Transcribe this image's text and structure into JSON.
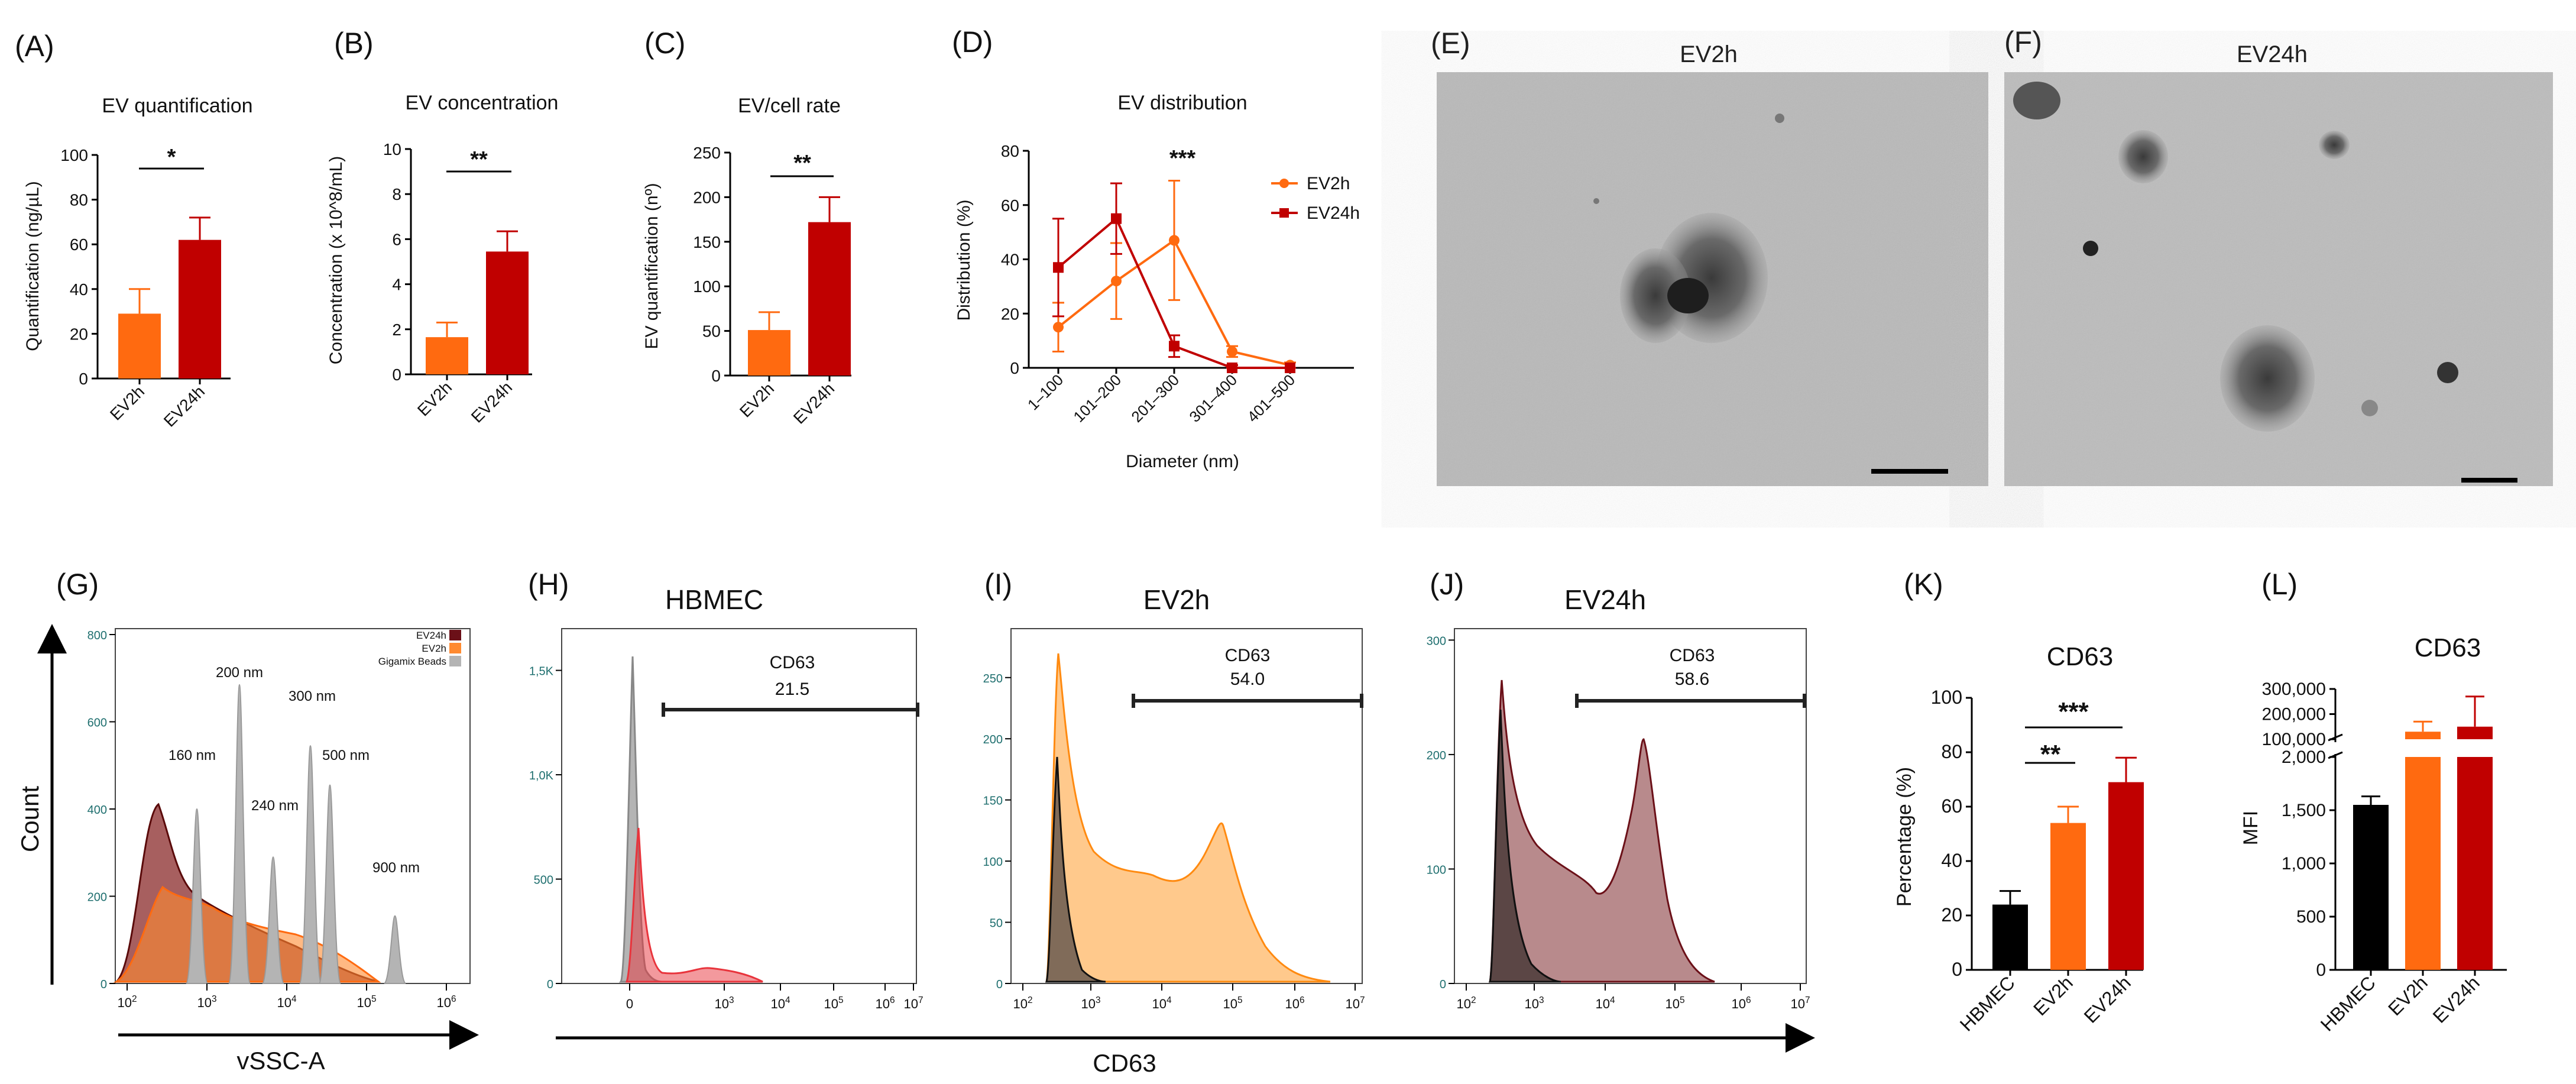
{
  "colors": {
    "ev2h": "#ff6a10",
    "ev24h": "#c00000",
    "ev24hTrace": "#6b1018",
    "ev2hFill": "#ffc98c",
    "hbmec": "#000000",
    "grey": "#b4b4b4",
    "red": "#e8343c"
  },
  "chart_data": [
    {
      "id": "A",
      "type": "bar",
      "panel_label": "(A)",
      "title": "EV quantification",
      "xlabel": "",
      "ylabel": "Quantification (ng/µL)",
      "categories": [
        "EV2h",
        "EV24h"
      ],
      "values": [
        29,
        62
      ],
      "errors": [
        11,
        10
      ],
      "ylim": [
        0,
        100
      ],
      "yticks": [
        "0",
        "20",
        "40",
        "60",
        "80",
        "100"
      ],
      "significance": "*"
    },
    {
      "id": "B",
      "type": "bar",
      "panel_label": "(B)",
      "title": "EV concentration",
      "xlabel": "",
      "ylabel": "Concentration (x 10^8/mL)",
      "categories": [
        "EV2h",
        "EV24h"
      ],
      "values": [
        1.65,
        5.45
      ],
      "errors": [
        0.65,
        0.9
      ],
      "ylim": [
        0,
        10
      ],
      "yticks": [
        "0",
        "2",
        "4",
        "6",
        "8",
        "10"
      ],
      "significance": "**"
    },
    {
      "id": "C",
      "type": "bar",
      "panel_label": "(C)",
      "title": "EV/cell rate",
      "xlabel": "",
      "ylabel": "EV quantification (nº)",
      "categories": [
        "EV2h",
        "EV24h"
      ],
      "values": [
        51,
        172
      ],
      "errors": [
        20,
        28
      ],
      "ylim": [
        0,
        250
      ],
      "yticks": [
        "0",
        "50",
        "100",
        "150",
        "200",
        "250"
      ],
      "significance": "**"
    },
    {
      "id": "D",
      "type": "line",
      "panel_label": "(D)",
      "title": "EV distribution",
      "xlabel": "Diameter (nm)",
      "ylabel": "Distribution (%)",
      "categories": [
        "1–100",
        "101–200",
        "201–300",
        "301–400",
        "401–500"
      ],
      "ylim": [
        0,
        80
      ],
      "yticks": [
        "0",
        "20",
        "40",
        "60",
        "80"
      ],
      "significance": "***",
      "series": [
        {
          "name": "EV2h",
          "values": [
            15,
            32,
            47,
            6,
            1
          ],
          "errors": [
            9,
            14,
            22,
            2,
            1
          ]
        },
        {
          "name": "EV24h",
          "values": [
            37,
            55,
            8,
            0,
            0
          ],
          "errors": [
            18,
            13,
            4,
            1,
            0
          ]
        }
      ]
    },
    {
      "id": "G",
      "type": "area",
      "panel_label": "(G)",
      "xlabel": "vSSC-A",
      "ylabel": "Count",
      "xticks": [
        "10^2",
        "10^3",
        "10^4",
        "10^5",
        "10^6"
      ],
      "yticks": [
        "0",
        "200",
        "400",
        "600",
        "800"
      ],
      "ylim": [
        0,
        800
      ],
      "legend": [
        "EV24h",
        "EV2h",
        "Gigamix Beads"
      ],
      "peak_labels": [
        "160 nm",
        "200 nm",
        "240 nm",
        "300 nm",
        "500 nm",
        "900 nm"
      ]
    },
    {
      "id": "H",
      "type": "area",
      "panel_label": "(H)",
      "title": "HBMEC",
      "xticks": [
        "0",
        "10^3",
        "10^4",
        "10^5",
        "10^6",
        "10^7"
      ],
      "yticks": [
        "0",
        "500",
        "1,0K",
        "1,5K"
      ],
      "gate_label": "CD63",
      "gate_value": "21.5"
    },
    {
      "id": "I",
      "type": "area",
      "panel_label": "(I)",
      "title": "EV2h",
      "xticks": [
        "10^2",
        "10^3",
        "10^4",
        "10^5",
        "10^6",
        "10^7"
      ],
      "yticks": [
        "0",
        "50",
        "100",
        "150",
        "200",
        "250"
      ],
      "gate_label": "CD63",
      "gate_value": "54.0"
    },
    {
      "id": "J",
      "type": "area",
      "panel_label": "(J)",
      "title": "EV24h",
      "xticks": [
        "10^2",
        "10^3",
        "10^4",
        "10^5",
        "10^6",
        "10^7"
      ],
      "yticks": [
        "0",
        "100",
        "200",
        "300"
      ],
      "gate_label": "CD63",
      "gate_value": "58.6"
    },
    {
      "id": "K",
      "type": "bar",
      "panel_label": "(K)",
      "title": "CD63",
      "ylabel": "Percentage (%)",
      "categories": [
        "HBMEC",
        "EV2h",
        "EV24h"
      ],
      "values": [
        24,
        54,
        69
      ],
      "errors": [
        5,
        6,
        9
      ],
      "ylim": [
        0,
        100
      ],
      "yticks": [
        "0",
        "20",
        "40",
        "60",
        "80",
        "100"
      ],
      "significance": [
        "**",
        "***"
      ]
    },
    {
      "id": "L",
      "type": "bar",
      "panel_label": "(L)",
      "title": "CD63",
      "ylabel": "MFI",
      "categories": [
        "HBMEC",
        "EV2h",
        "EV24h"
      ],
      "values": [
        1550,
        130000,
        150000
      ],
      "errors": [
        80,
        40000,
        120000
      ],
      "yticks_lower": [
        "0",
        "500",
        "1,000",
        "1,500",
        "2,000"
      ],
      "yticks_upper": [
        "100,000",
        "200,000",
        "300,000"
      ]
    }
  ],
  "shared_xlabel": "CD63",
  "tem": [
    {
      "label": "(E)",
      "title": "EV2h"
    },
    {
      "label": "(F)",
      "title": "EV24h"
    }
  ]
}
